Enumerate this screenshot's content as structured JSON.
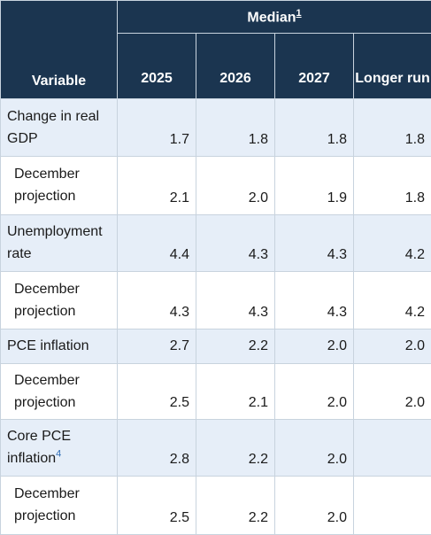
{
  "header": {
    "variable_label": "Variable",
    "median_label": "Median",
    "median_footnote": "1",
    "years": [
      "2025",
      "2026",
      "2027",
      "Longer run"
    ]
  },
  "rows": [
    {
      "label": "Change in real GDP",
      "footnote": "",
      "kind": "main",
      "values": [
        "1.7",
        "1.8",
        "1.8",
        "1.8"
      ]
    },
    {
      "label": "December projection",
      "footnote": "",
      "kind": "sub",
      "values": [
        "2.1",
        "2.0",
        "1.9",
        "1.8"
      ]
    },
    {
      "label": "Unemployment rate",
      "footnote": "",
      "kind": "main",
      "values": [
        "4.4",
        "4.3",
        "4.3",
        "4.2"
      ]
    },
    {
      "label": "December projection",
      "footnote": "",
      "kind": "sub",
      "values": [
        "4.3",
        "4.3",
        "4.3",
        "4.2"
      ]
    },
    {
      "label": "PCE inflation",
      "footnote": "",
      "kind": "main",
      "values": [
        "2.7",
        "2.2",
        "2.0",
        "2.0"
      ]
    },
    {
      "label": "December projection",
      "footnote": "",
      "kind": "sub",
      "values": [
        "2.5",
        "2.1",
        "2.0",
        "2.0"
      ]
    },
    {
      "label": "Core PCE inflation",
      "footnote": "4",
      "kind": "main",
      "values": [
        "2.8",
        "2.2",
        "2.0",
        ""
      ]
    },
    {
      "label": "December projection",
      "footnote": "",
      "kind": "sub",
      "values": [
        "2.5",
        "2.2",
        "2.0",
        ""
      ]
    }
  ],
  "colors": {
    "header_bg": "#1b3550",
    "main_row_bg": "#e6eef8",
    "sub_row_bg": "#ffffff",
    "footnote_link": "#2f6db5"
  }
}
